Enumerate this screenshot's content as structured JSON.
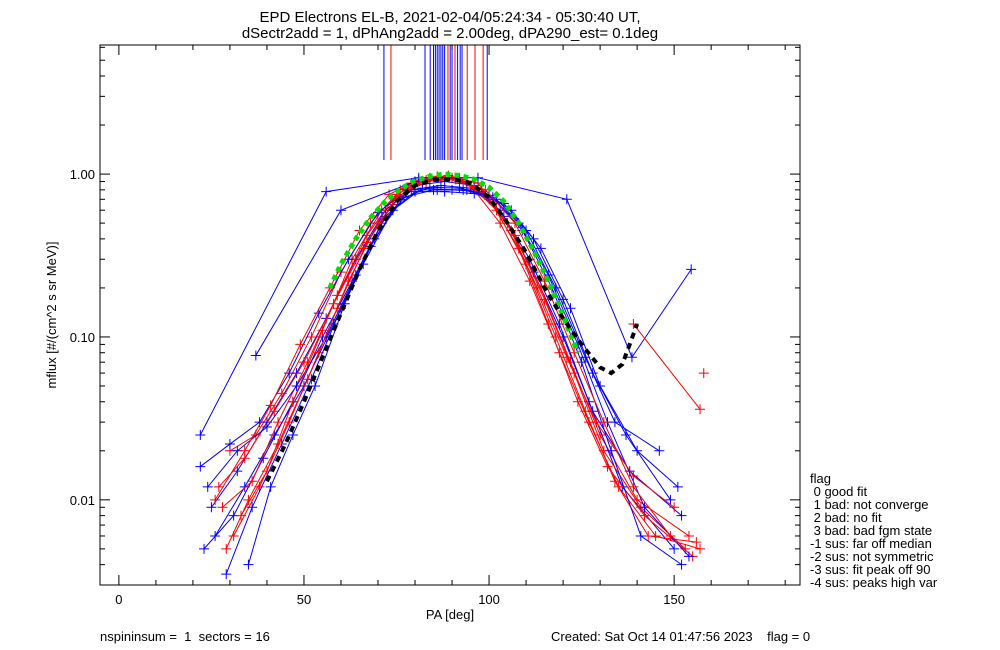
{
  "chart_data": {
    "type": "line",
    "title": "EPD Electrons EL-B, 2021-02-04/05:24:34 - 05:30:40 UT,",
    "subtitle": "dSectr2add = 1, dPhAng2add = 2.00deg, dPA290_est=   0.1deg",
    "xlabel": "PA [deg]",
    "ylabel": "mflux [#/(cm^2 s sr MeV)]",
    "xlim": [
      -5.1,
      184
    ],
    "ylim": [
      0.003,
      6.2
    ],
    "yscale": "log",
    "grid": false,
    "x_ticks": [
      0,
      50,
      100,
      150
    ],
    "x_tick_labels": [
      "0",
      "50",
      "100",
      "150"
    ],
    "y_ticks": [
      1.0,
      0.1,
      0.01
    ],
    "y_tick_labels": [
      "1.00",
      "0.10",
      "0.01"
    ],
    "colors": {
      "blue": "#0000ff",
      "red": "#ff0000",
      "fit": "#00e000",
      "median": "#000000"
    },
    "peak_markers": [
      {
        "pa": 71.6,
        "color": "blue"
      },
      {
        "pa": 73.5,
        "color": "red"
      },
      {
        "pa": 82.7,
        "color": "blue"
      },
      {
        "pa": 84.1,
        "color": "blue"
      },
      {
        "pa": 85.0,
        "color": "blue"
      },
      {
        "pa": 85.5,
        "color": "blue"
      },
      {
        "pa": 86.0,
        "color": "blue"
      },
      {
        "pa": 86.5,
        "color": "blue"
      },
      {
        "pa": 87.0,
        "color": "blue"
      },
      {
        "pa": 87.5,
        "color": "blue"
      },
      {
        "pa": 88.0,
        "color": "blue"
      },
      {
        "pa": 88.9,
        "color": "red"
      },
      {
        "pa": 89.5,
        "color": "blue"
      },
      {
        "pa": 90.0,
        "color": "blue"
      },
      {
        "pa": 90.8,
        "color": "red"
      },
      {
        "pa": 91.5,
        "color": "blue"
      },
      {
        "pa": 92.2,
        "color": "blue"
      },
      {
        "pa": 92.7,
        "color": "blue"
      },
      {
        "pa": 94.1,
        "color": "red"
      },
      {
        "pa": 96.2,
        "color": "red"
      },
      {
        "pa": 98.4,
        "color": "red"
      },
      {
        "pa": 99.5,
        "color": "blue"
      }
    ],
    "peak_marker_floor": 1.22,
    "series": [
      {
        "color": "blue",
        "pa": [
          25,
          32,
          40,
          48,
          56,
          64,
          72,
          80,
          88,
          96,
          104,
          112,
          120,
          128,
          138,
          152
        ],
        "flux": [
          0.009,
          0.015,
          0.03,
          0.06,
          0.13,
          0.3,
          0.6,
          0.85,
          0.9,
          0.85,
          0.55,
          0.25,
          0.1,
          0.035,
          0.015,
          0.008
        ]
      },
      {
        "color": "red",
        "pa": [
          27,
          34,
          42,
          50,
          58,
          66,
          74,
          82,
          90,
          98,
          106,
          114,
          122,
          130,
          140,
          154
        ],
        "flux": [
          0.012,
          0.018,
          0.035,
          0.07,
          0.16,
          0.35,
          0.65,
          0.9,
          0.95,
          0.8,
          0.45,
          0.2,
          0.07,
          0.025,
          0.01,
          0.006
        ]
      },
      {
        "color": "blue",
        "pa": [
          23,
          31,
          39,
          47,
          55,
          63,
          71,
          79,
          87,
          95,
          103,
          111,
          119,
          127,
          136,
          150
        ],
        "flux": [
          0.005,
          0.008,
          0.018,
          0.04,
          0.1,
          0.22,
          0.5,
          0.8,
          0.85,
          0.82,
          0.6,
          0.3,
          0.12,
          0.04,
          0.012,
          0.005
        ]
      },
      {
        "color": "red",
        "pa": [
          30,
          37,
          44,
          52,
          60,
          68,
          76,
          84,
          92,
          100,
          108,
          116,
          124,
          132,
          142,
          155
        ],
        "flux": [
          0.02,
          0.025,
          0.045,
          0.1,
          0.25,
          0.5,
          0.8,
          0.95,
          0.95,
          0.7,
          0.35,
          0.12,
          0.04,
          0.016,
          0.008,
          0.0045
        ]
      },
      {
        "color": "blue",
        "pa": [
          26,
          34,
          42,
          50,
          58,
          66,
          74,
          82,
          90,
          98,
          106,
          114,
          122,
          130,
          140,
          151
        ],
        "flux": [
          0.006,
          0.012,
          0.025,
          0.05,
          0.12,
          0.28,
          0.6,
          0.82,
          0.8,
          0.78,
          0.6,
          0.35,
          0.15,
          0.05,
          0.02,
          0.012
        ]
      },
      {
        "color": "red",
        "pa": [
          28,
          36,
          43,
          51,
          59,
          67,
          75,
          83,
          91,
          99,
          107,
          115,
          123,
          131,
          141,
          153
        ],
        "flux": [
          0.009,
          0.013,
          0.03,
          0.07,
          0.18,
          0.42,
          0.75,
          0.92,
          0.93,
          0.75,
          0.42,
          0.17,
          0.06,
          0.02,
          0.009,
          0.005
        ]
      },
      {
        "color": "blue",
        "pa": [
          24,
          32,
          40,
          48,
          56,
          64,
          72,
          80,
          88,
          96,
          104,
          112,
          120,
          128,
          137,
          149
        ],
        "flux": [
          0.012,
          0.02,
          0.028,
          0.05,
          0.1,
          0.24,
          0.55,
          0.78,
          0.78,
          0.76,
          0.66,
          0.4,
          0.17,
          0.06,
          0.025,
          0.01
        ]
      },
      {
        "color": "red",
        "pa": [
          31,
          38,
          46,
          54,
          62,
          70,
          78,
          86,
          94,
          102,
          110,
          118,
          126,
          134,
          143,
          156
        ],
        "flux": [
          0.006,
          0.012,
          0.03,
          0.08,
          0.22,
          0.5,
          0.82,
          0.97,
          0.9,
          0.6,
          0.28,
          0.1,
          0.035,
          0.013,
          0.006,
          0.0055
        ]
      },
      {
        "color": "blue",
        "pa": [
          29,
          36,
          44,
          52,
          60,
          68,
          76,
          84,
          92,
          100,
          108,
          116,
          124,
          132,
          142,
          154
        ],
        "flux": [
          0.0035,
          0.009,
          0.022,
          0.055,
          0.15,
          0.36,
          0.7,
          0.83,
          0.82,
          0.74,
          0.5,
          0.24,
          0.09,
          0.03,
          0.009,
          0.0045
        ]
      },
      {
        "color": "red",
        "pa": [
          33,
          40,
          47,
          55,
          63,
          71,
          79,
          87,
          95,
          103,
          111,
          119,
          127,
          135,
          145,
          157
        ],
        "flux": [
          0.008,
          0.015,
          0.04,
          0.11,
          0.3,
          0.6,
          0.88,
          0.96,
          0.85,
          0.5,
          0.22,
          0.08,
          0.03,
          0.012,
          0.006,
          0.005
        ]
      },
      {
        "color": "blue",
        "pa": [
          22,
          30,
          38,
          46,
          54,
          62,
          70,
          78,
          86,
          94,
          102,
          110,
          118,
          126,
          134,
          146
        ],
        "flux": [
          0.016,
          0.022,
          0.03,
          0.06,
          0.14,
          0.3,
          0.58,
          0.8,
          0.8,
          0.8,
          0.7,
          0.45,
          0.2,
          0.075,
          0.03,
          0.02
        ]
      },
      {
        "color": "red",
        "pa": [
          26,
          34,
          41,
          49,
          57,
          65,
          73,
          81,
          89,
          97,
          105,
          113,
          121,
          129,
          139,
          150
        ],
        "flux": [
          0.01,
          0.02,
          0.038,
          0.09,
          0.2,
          0.45,
          0.75,
          0.92,
          0.98,
          0.88,
          0.5,
          0.2,
          0.075,
          0.03,
          0.014,
          0.009
        ]
      },
      {
        "color": "blue",
        "pa": [
          35,
          41,
          47,
          53,
          61,
          69,
          77,
          85,
          93,
          101,
          109,
          117,
          125,
          133,
          141,
          152
        ],
        "flux": [
          0.004,
          0.012,
          0.025,
          0.05,
          0.16,
          0.4,
          0.72,
          0.8,
          0.8,
          0.72,
          0.45,
          0.2,
          0.07,
          0.02,
          0.006,
          0.004
        ]
      },
      {
        "color": "red",
        "pa": [
          29,
          35,
          43,
          51,
          59,
          67,
          75,
          83,
          91,
          99,
          107,
          115,
          123,
          131,
          139,
          149
        ],
        "flux": [
          0.005,
          0.01,
          0.022,
          0.055,
          0.15,
          0.38,
          0.72,
          0.9,
          0.93,
          0.8,
          0.5,
          0.22,
          0.08,
          0.03,
          0.012,
          0.006
        ]
      },
      {
        "color": "blue",
        "pa": [
          22,
          56,
          81,
          97,
          121,
          138.6,
          154.6
        ],
        "flux": [
          0.025,
          0.78,
          0.95,
          0.95,
          0.7,
          0.075,
          0.26
        ]
      },
      {
        "color": "blue",
        "pa": [
          37,
          60,
          80
        ],
        "flux": [
          0.077,
          0.6,
          0.9
        ]
      },
      {
        "color": "red",
        "pa": [
          139,
          157
        ],
        "flux": [
          0.12,
          0.036
        ]
      },
      {
        "color": "red",
        "pa": [
          158
        ],
        "flux": [
          0.06
        ]
      }
    ],
    "fit_curve": {
      "name": "fit",
      "pa": [
        57,
        60,
        64,
        68,
        72,
        76,
        80,
        84,
        88,
        92,
        96,
        100,
        104,
        108,
        112,
        116,
        120,
        124
      ],
      "flux": [
        0.2,
        0.28,
        0.4,
        0.54,
        0.68,
        0.81,
        0.91,
        0.97,
        1.0,
        0.98,
        0.93,
        0.83,
        0.68,
        0.5,
        0.34,
        0.22,
        0.135,
        0.08
      ]
    },
    "median_curve": {
      "name": "median",
      "pa": [
        40,
        45,
        50,
        55,
        60,
        65,
        70,
        75,
        80,
        85,
        90,
        95,
        100,
        105,
        110,
        115,
        120,
        125,
        130,
        133,
        136,
        138,
        140
      ],
      "flux": [
        0.013,
        0.022,
        0.04,
        0.075,
        0.14,
        0.26,
        0.45,
        0.68,
        0.85,
        0.92,
        0.93,
        0.88,
        0.72,
        0.5,
        0.33,
        0.2,
        0.13,
        0.09,
        0.065,
        0.06,
        0.068,
        0.09,
        0.12
      ]
    },
    "legend": {
      "placement": "right",
      "title": "flag",
      "items": [
        " 0 good fit",
        " 1 bad: not converge",
        " 2 bad: no fit",
        " 3 bad: bad fgm state",
        "-1 sus: far off median",
        "-2 sus: not symmetric",
        "-3 sus: fit peak off 90",
        "-4 sus: peaks high var"
      ]
    }
  },
  "footer": {
    "left": "nspininsum =  1  sectors = 16",
    "right": "Created: Sat Oct 14 01:47:56 2023    flag = 0"
  }
}
